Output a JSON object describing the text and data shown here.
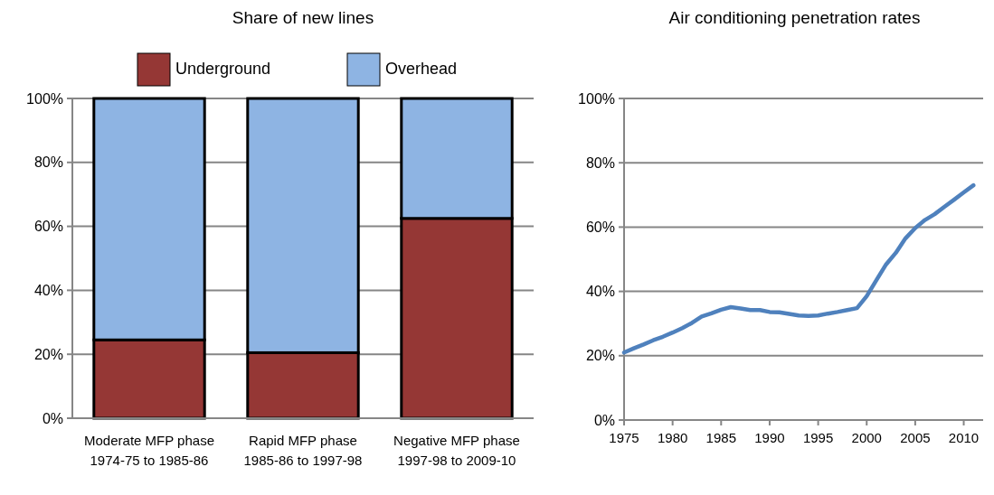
{
  "chart_data": [
    {
      "type": "bar",
      "title": "Share of new lines",
      "stacked": true,
      "categories": [
        "Moderate MFP phase 1974-75 to 1985-86",
        "Rapid MFP phase 1985-86 to 1997-98",
        "Negative MFP phase 1997-98 to 2009-10"
      ],
      "series": [
        {
          "name": "Underground",
          "color": "#953735",
          "values": [
            24.5,
            20.5,
            62.5
          ]
        },
        {
          "name": "Overhead",
          "color": "#8eb4e3",
          "values": [
            75.5,
            79.5,
            37.5
          ]
        }
      ],
      "ylim": [
        0,
        100
      ],
      "yticks": [
        {
          "value": 0,
          "label": "0%"
        },
        {
          "value": 20,
          "label": "20%"
        },
        {
          "value": 40,
          "label": "40%"
        },
        {
          "value": 60,
          "label": "60%"
        },
        {
          "value": 80,
          "label": "80%"
        },
        {
          "value": 100,
          "label": "100%"
        }
      ],
      "grid": "y",
      "legend": "top"
    },
    {
      "type": "line",
      "title": "Air conditioning penetration rates",
      "x": [
        1975,
        1976,
        1977,
        1978,
        1979,
        1980,
        1981,
        1982,
        1983,
        1984,
        1985,
        1986,
        1987,
        1988,
        1989,
        1990,
        1991,
        1992,
        1993,
        1994,
        1995,
        1996,
        1997,
        1998,
        1999,
        2000,
        2001,
        2002,
        2003,
        2004,
        2005,
        2006,
        2007,
        2008,
        2009,
        2010,
        2011
      ],
      "series": [
        {
          "color": "#4f81bd",
          "values": [
            21,
            22.3,
            23.5,
            24.8,
            25.9,
            27.2,
            28.6,
            30.2,
            32.2,
            33.2,
            34.3,
            35.1,
            34.7,
            34.2,
            34.2,
            33.6,
            33.5,
            33,
            32.5,
            32.4,
            32.5,
            33.1,
            33.6,
            34.2,
            34.8,
            38.5,
            43.5,
            48.4,
            52,
            56.5,
            59.7,
            62.2,
            64,
            66.3,
            68.5,
            70.8,
            73
          ]
        }
      ],
      "xlim": [
        1975,
        2012
      ],
      "xticks": [
        1975,
        1980,
        1985,
        1990,
        1995,
        2000,
        2005,
        2010
      ],
      "ylim": [
        0,
        100
      ],
      "yticks": [
        {
          "value": 0,
          "label": "0%"
        },
        {
          "value": 20,
          "label": "20%"
        },
        {
          "value": 40,
          "label": "40%"
        },
        {
          "value": 60,
          "label": "60%"
        },
        {
          "value": 80,
          "label": "80%"
        },
        {
          "value": 100,
          "label": "100%"
        }
      ],
      "grid": "y",
      "marker": "none",
      "line_style": "solid"
    }
  ]
}
